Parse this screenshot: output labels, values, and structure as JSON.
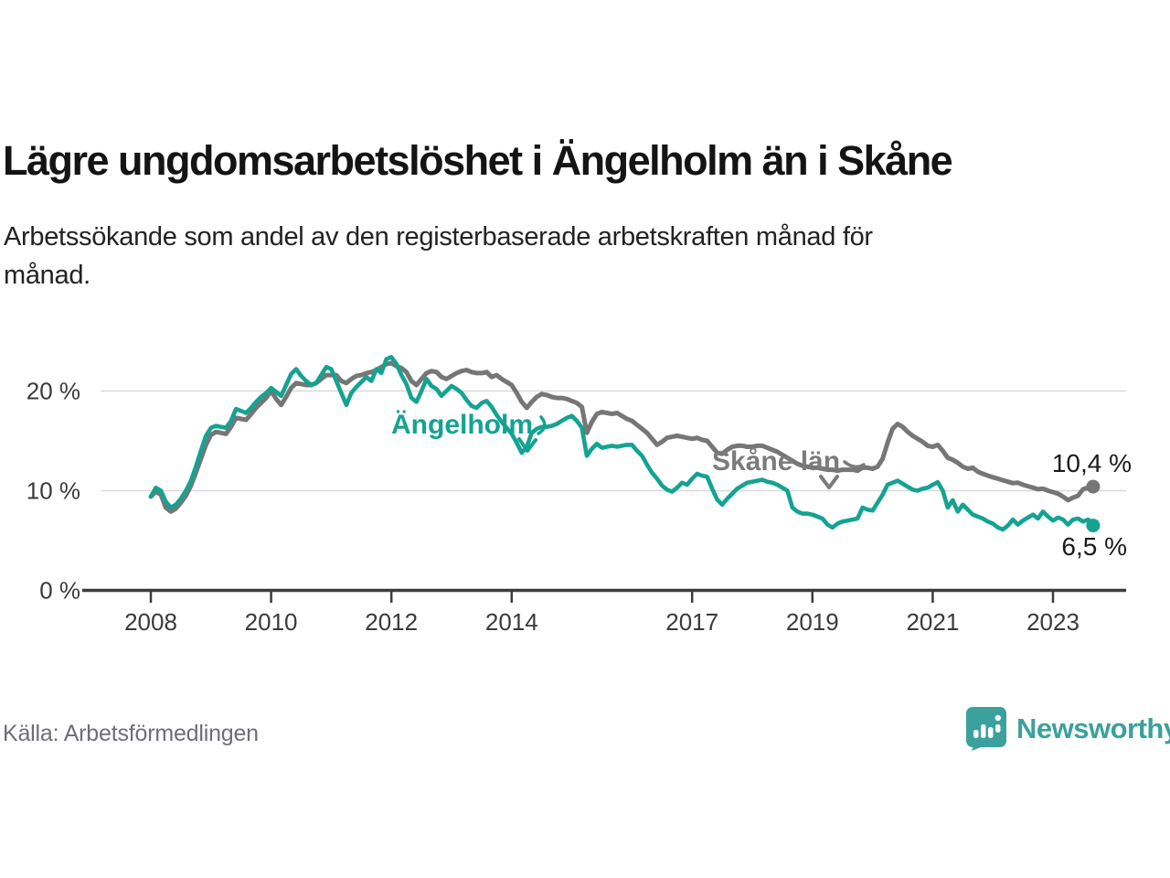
{
  "header": {
    "title": "Lägre ungdomsarbetslöshet i Ängelholm än i Skåne",
    "subtitle_line1": "Arbetssökande som andel av den registerbaserade arbetskraften månad för",
    "subtitle_line2": "månad."
  },
  "footer": {
    "source": "Källa: Arbetsförmedlingen",
    "logo_text": "Newsworthy"
  },
  "chart_data": {
    "type": "line",
    "title": "Lägre ungdomsarbetslöshet i Ängelholm än i Skåne",
    "subtitle": "Arbetssökande som andel av den registerbaserade arbetskraften månad för månad.",
    "frequency": "monthly",
    "x_range": [
      "2008-01",
      "2023-09"
    ],
    "ylim": [
      0,
      24
    ],
    "grid": "horizontal",
    "legend_position": "inline-annotations",
    "x_ticks": [
      "2008",
      "2010",
      "2012",
      "2014",
      "2017",
      "2019",
      "2021",
      "2023"
    ],
    "y_ticks": [
      {
        "value": 20,
        "label": "20 %"
      },
      {
        "value": 10,
        "label": "10 %"
      },
      {
        "value": 0,
        "label": "0 %"
      }
    ],
    "colors": {
      "angelholm": "#14a392",
      "skane": "#767676",
      "grid": "#d9d9d9",
      "axis": "#3c3c3c"
    },
    "series": [
      {
        "name": "Skåne län",
        "color": "#767676",
        "end_value": 10.4,
        "end_label": "10,4 %",
        "values": [
          9.4,
          9.9,
          9.6,
          8.3,
          7.9,
          8.2,
          8.8,
          9.5,
          10.5,
          11.8,
          13.2,
          14.6,
          15.6,
          15.9,
          15.8,
          15.7,
          16.4,
          17.3,
          17.2,
          17.1,
          17.7,
          18.3,
          18.8,
          19.3,
          20.0,
          19.2,
          18.6,
          19.4,
          20.3,
          20.8,
          20.7,
          20.6,
          20.6,
          20.8,
          21.2,
          21.6,
          21.6,
          21.6,
          21.0,
          20.8,
          21.2,
          21.5,
          21.6,
          21.8,
          21.9,
          22.1,
          22.4,
          22.7,
          22.8,
          22.5,
          22.3,
          21.9,
          21.0,
          20.6,
          21.2,
          21.8,
          22.0,
          21.9,
          21.4,
          21.2,
          21.5,
          21.8,
          22.0,
          22.1,
          21.9,
          21.8,
          21.8,
          21.9,
          21.4,
          21.6,
          21.2,
          20.9,
          20.6,
          19.8,
          18.9,
          18.3,
          18.9,
          19.4,
          19.7,
          19.6,
          19.4,
          19.3,
          19.3,
          19.2,
          19.0,
          18.8,
          18.4,
          15.8,
          16.9,
          17.7,
          17.9,
          17.8,
          17.7,
          17.8,
          17.5,
          17.2,
          17.0,
          16.6,
          16.2,
          15.8,
          15.2,
          14.6,
          14.9,
          15.3,
          15.4,
          15.5,
          15.4,
          15.3,
          15.2,
          15.3,
          15.1,
          15.0,
          14.4,
          13.8,
          13.7,
          14.1,
          14.4,
          14.5,
          14.5,
          14.4,
          14.4,
          14.5,
          14.5,
          14.3,
          14.1,
          13.9,
          13.6,
          13.3,
          13.0,
          12.7,
          12.5,
          12.4,
          12.3,
          12.3,
          12.2,
          12.1,
          12.1,
          12.0,
          12.1,
          12.1,
          12.1,
          12.0,
          12.3,
          12.3,
          12.2,
          12.4,
          13.2,
          14.8,
          16.2,
          16.7,
          16.4,
          15.9,
          15.5,
          15.2,
          14.9,
          14.5,
          14.4,
          14.6,
          14.0,
          13.3,
          13.1,
          12.8,
          12.4,
          12.2,
          12.3,
          11.9,
          11.7,
          11.5,
          11.35,
          11.2,
          11.05,
          10.9,
          10.75,
          10.8,
          10.6,
          10.45,
          10.3,
          10.15,
          10.2,
          10.0,
          9.85,
          9.7,
          9.4,
          9.05,
          9.3,
          9.5,
          10.15,
          10.3,
          10.4
        ]
      },
      {
        "name": "Ängelholm",
        "color": "#14a392",
        "end_value": 6.5,
        "end_label": "6,5 %",
        "values": [
          9.4,
          10.3,
          10.0,
          8.9,
          8.3,
          8.6,
          9.2,
          10.0,
          11.0,
          12.4,
          14.0,
          15.5,
          16.3,
          16.5,
          16.4,
          16.3,
          17.0,
          18.2,
          18.0,
          17.8,
          18.3,
          18.9,
          19.4,
          19.8,
          20.3,
          19.9,
          19.5,
          20.6,
          21.7,
          22.2,
          21.5,
          21.0,
          20.6,
          20.8,
          21.6,
          22.4,
          22.2,
          21.0,
          19.8,
          18.6,
          19.8,
          20.4,
          20.9,
          21.4,
          21.0,
          22.2,
          21.8,
          23.2,
          23.4,
          22.7,
          21.6,
          20.7,
          19.3,
          18.9,
          20.0,
          21.2,
          20.5,
          20.2,
          19.5,
          20.0,
          20.5,
          20.2,
          19.8,
          19.1,
          18.5,
          18.3,
          18.8,
          19.0,
          18.4,
          17.6,
          16.9,
          16.3,
          15.7,
          14.8,
          13.8,
          14.4,
          15.8,
          16.2,
          16.4,
          16.4,
          16.5,
          16.7,
          17.0,
          17.3,
          17.5,
          17.0,
          16.3,
          13.5,
          14.2,
          14.7,
          14.3,
          14.4,
          14.5,
          14.4,
          14.5,
          14.6,
          14.6,
          14.0,
          13.5,
          12.6,
          11.8,
          11.2,
          10.5,
          10.1,
          9.9,
          10.3,
          10.8,
          10.6,
          11.2,
          11.7,
          11.5,
          11.4,
          10.2,
          9.1,
          8.6,
          9.2,
          9.7,
          10.2,
          10.5,
          10.8,
          10.9,
          11.0,
          11.1,
          10.9,
          10.8,
          10.6,
          10.3,
          10.0,
          8.3,
          7.9,
          7.7,
          7.7,
          7.6,
          7.4,
          7.2,
          6.6,
          6.3,
          6.7,
          6.9,
          7.0,
          7.1,
          7.2,
          8.3,
          8.1,
          8.0,
          8.8,
          9.6,
          10.6,
          10.8,
          11.0,
          10.7,
          10.4,
          10.1,
          10.0,
          10.2,
          10.3,
          10.6,
          10.85,
          10.0,
          8.3,
          9.05,
          7.9,
          8.6,
          8.1,
          7.6,
          7.4,
          7.2,
          6.9,
          6.7,
          6.3,
          6.1,
          6.5,
          7.1,
          6.6,
          7.0,
          7.3,
          7.6,
          7.2,
          7.9,
          7.4,
          7.0,
          7.3,
          7.1,
          6.6,
          7.1,
          7.2,
          6.9,
          7.1,
          6.5
        ]
      }
    ]
  }
}
